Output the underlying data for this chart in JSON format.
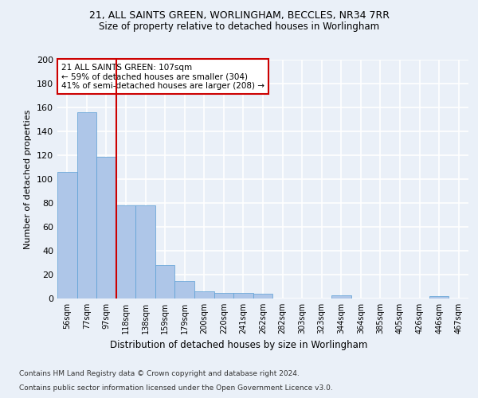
{
  "title1": "21, ALL SAINTS GREEN, WORLINGHAM, BECCLES, NR34 7RR",
  "title2": "Size of property relative to detached houses in Worlingham",
  "xlabel": "Distribution of detached houses by size in Worlingham",
  "ylabel": "Number of detached properties",
  "categories": [
    "56sqm",
    "77sqm",
    "97sqm",
    "118sqm",
    "138sqm",
    "159sqm",
    "179sqm",
    "200sqm",
    "220sqm",
    "241sqm",
    "262sqm",
    "282sqm",
    "303sqm",
    "323sqm",
    "344sqm",
    "364sqm",
    "385sqm",
    "405sqm",
    "426sqm",
    "446sqm",
    "467sqm"
  ],
  "values": [
    106,
    156,
    119,
    78,
    78,
    28,
    15,
    6,
    5,
    5,
    4,
    0,
    0,
    0,
    3,
    0,
    0,
    0,
    0,
    2,
    0
  ],
  "bar_color": "#aec6e8",
  "bar_edge_color": "#5a9fd4",
  "vline_x": 2.5,
  "vline_color": "#cc0000",
  "annotation_text": "21 ALL SAINTS GREEN: 107sqm\n← 59% of detached houses are smaller (304)\n41% of semi-detached houses are larger (208) →",
  "annotation_box_color": "#ffffff",
  "annotation_box_edge": "#cc0000",
  "ylim": [
    0,
    200
  ],
  "yticks": [
    0,
    20,
    40,
    60,
    80,
    100,
    120,
    140,
    160,
    180,
    200
  ],
  "bg_color": "#eaf0f8",
  "plot_bg_color": "#eaf0f8",
  "grid_color": "#ffffff",
  "footer1": "Contains HM Land Registry data © Crown copyright and database right 2024.",
  "footer2": "Contains public sector information licensed under the Open Government Licence v3.0."
}
